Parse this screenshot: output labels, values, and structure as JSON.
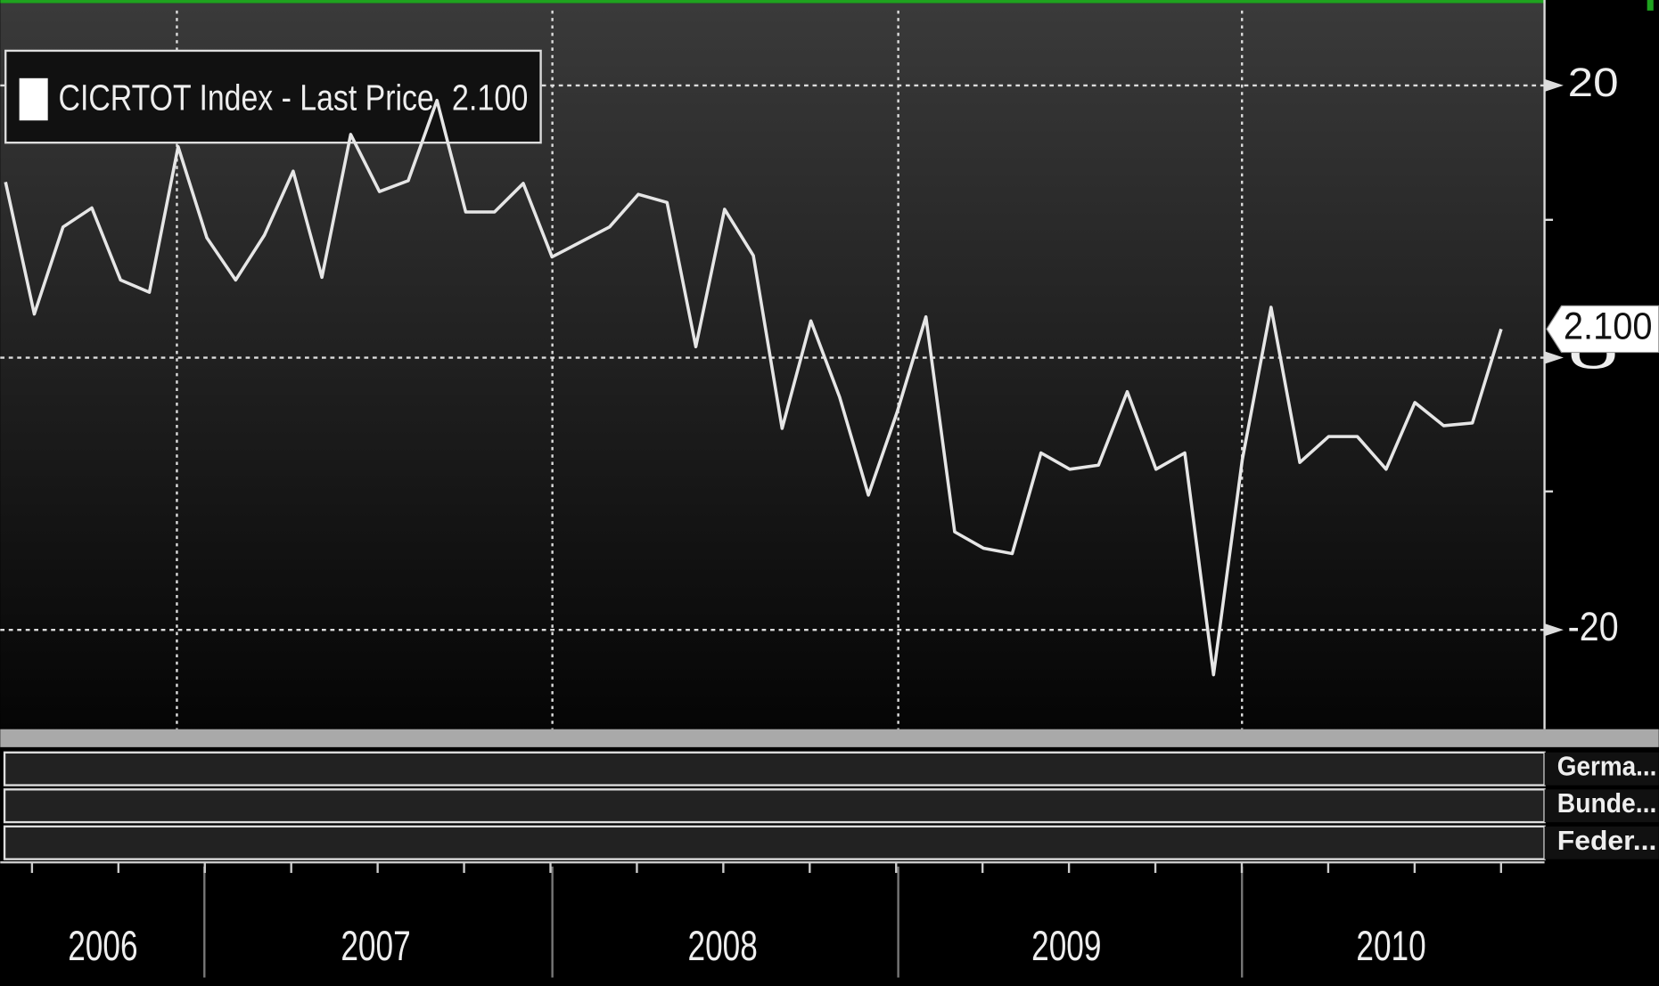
{
  "chart_data": {
    "type": "line",
    "legend_name": "CICRTOT Index - Last Price",
    "legend_value": "2.100",
    "categories": [
      null,
      null,
      null,
      null,
      null,
      null,
      null,
      null,
      null,
      null,
      null,
      null,
      null,
      null,
      null,
      null,
      null,
      null,
      null,
      null,
      null,
      null,
      null,
      null,
      null,
      null,
      null,
      null,
      null,
      null,
      null,
      null,
      null,
      null,
      null,
      null,
      null,
      null,
      null,
      null,
      null,
      null,
      null,
      null,
      null,
      null,
      null,
      null,
      null,
      null,
      null,
      null,
      null
    ],
    "series": [
      {
        "name": "CICRTOT Index - Last Price",
        "color": "#e6e6e6",
        "values": [
          12.9,
          3.2,
          9.6,
          11.0,
          5.7,
          4.8,
          15.5,
          8.8,
          5.7,
          9.0,
          13.7,
          5.9,
          16.4,
          12.2,
          13.0,
          18.9,
          10.7,
          10.7,
          12.8,
          7.4,
          8.5,
          9.6,
          12.0,
          11.4,
          0.8,
          10.9,
          7.5,
          -5.2,
          2.7,
          -2.9,
          -10.1,
          -4.0,
          3.0,
          -12.8,
          -14.0,
          -14.4,
          -7.0,
          -8.2,
          -7.9,
          -2.5,
          -8.2,
          -7.0,
          -23.3,
          -7.5,
          3.7,
          -7.7,
          -5.8,
          -5.8,
          -8.2,
          -3.3,
          -5.0,
          -4.8,
          2.1
        ]
      }
    ],
    "ylim": [
      -27.3,
      25.5
    ],
    "yticks": [
      -20,
      0,
      20
    ],
    "grid": true,
    "x_labels": [
      "2006",
      "2007",
      "2008",
      "2009",
      "2010"
    ],
    "panels": [
      "Germa...",
      "Bunde...",
      "Feder..."
    ]
  }
}
